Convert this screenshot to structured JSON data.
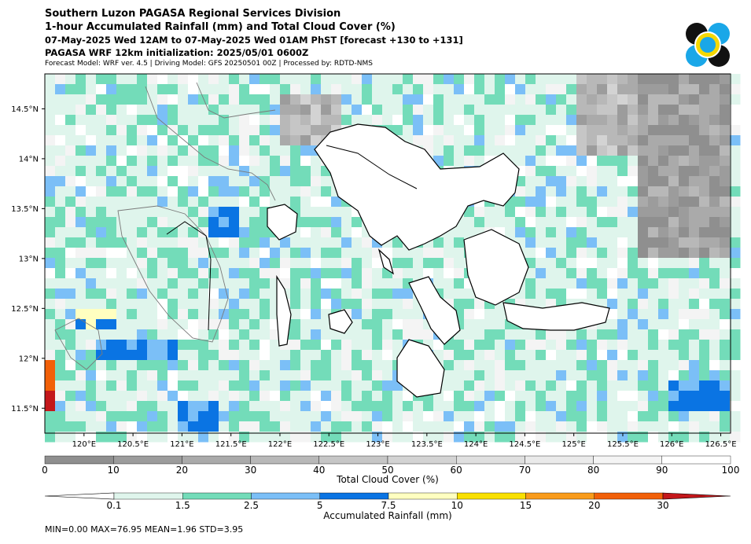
{
  "header": {
    "line1": "Southern Luzon PAGASA Regional Services Division",
    "line2": "1-hour Accumulated Rainfall (mm) and Total Cloud Cover (%)",
    "line3": "07-May-2025 Wed 12AM to 07-May-2025 Wed 01AM PhST [forecast +130 to +131]",
    "line4": "PAGASA WRF 12km initialization: 2025/05/01 0600Z",
    "line5": "Forecast Model: WRF ver. 4.5 | Driving Model: GFS 20250501 00Z | Processed by: RDTD-NMS"
  },
  "stats_text": "MIN=0.00   MAX=76.95   MEAN=1.96   STD=3.95",
  "logo": {
    "name": "PAGASA seal",
    "colors": [
      "#111111",
      "#1aa7e8",
      "#f5d800"
    ]
  },
  "chart_data": {
    "type": "heatmap",
    "map_extent": {
      "lon": [
        119.6,
        126.6
      ],
      "lat": [
        11.25,
        14.85
      ]
    },
    "xticks": [
      120,
      120.5,
      121,
      121.5,
      122,
      122.5,
      123,
      123.5,
      124,
      124.5,
      125,
      125.5,
      126,
      126.5
    ],
    "xtick_labels": [
      "120°E",
      "120.5°E",
      "121°E",
      "121.5°E",
      "122°E",
      "122.5°E",
      "123°E",
      "123.5°E",
      "124°E",
      "124.5°E",
      "125°E",
      "125.5°E",
      "126°E",
      "126.5°E"
    ],
    "yticks": [
      11.5,
      12,
      12.5,
      13,
      13.5,
      14,
      14.5
    ],
    "ytick_labels": [
      "11.5°N",
      "12°N",
      "12.5°N",
      "13°N",
      "13.5°N",
      "14°N",
      "14.5°N"
    ],
    "cloud_colorbar": {
      "label": "Total Cloud Cover (%)",
      "bounds": [
        0,
        10,
        20,
        30,
        40,
        50,
        60,
        70,
        80,
        90,
        100
      ],
      "tick_labels": [
        "0",
        "10",
        "20",
        "30",
        "40",
        "50",
        "60",
        "70",
        "80",
        "90",
        "100"
      ],
      "colors": [
        "#8f8f8f",
        "#9c9c9c",
        "#aaaaaa",
        "#b8b8b8",
        "#c6c6c6",
        "#d3d3d3",
        "#dfdfdf",
        "#eaeaea",
        "#f4f4f4",
        "#ffffff"
      ]
    },
    "rain_colorbar": {
      "label": "Accumulated Rainfall (mm)",
      "tick_labels": [
        "0.1",
        "1.5",
        "2.5",
        "5",
        "7.5",
        "10",
        "15",
        "20",
        "30"
      ],
      "colors": [
        "#dff5ec",
        "#73dcb9",
        "#7bbff7",
        "#0a74e3",
        "#ffffc0",
        "#f9e000",
        "#f99b1a",
        "#f26008",
        "#c4171b"
      ],
      "extend": "both"
    },
    "rain_zones": [
      {
        "lon": [
          120.1,
          121.0
        ],
        "lat": [
          12.0,
          12.2
        ],
        "bin": 3
      },
      {
        "lon": [
          121.3,
          121.6
        ],
        "lat": [
          13.2,
          13.5
        ],
        "bin": 3
      },
      {
        "lon": [
          121.0,
          121.4
        ],
        "lat": [
          11.3,
          11.6
        ],
        "bin": 3
      },
      {
        "lon": [
          119.95,
          120.35
        ],
        "lat": [
          12.25,
          12.45
        ],
        "bin": 4
      },
      {
        "lon": [
          119.6,
          119.75
        ],
        "lat": [
          11.5,
          12.0
        ],
        "bin": 7
      },
      {
        "lon": [
          119.6,
          119.7
        ],
        "lat": [
          11.45,
          11.65
        ],
        "bin": 8
      },
      {
        "lon": [
          126.0,
          126.6
        ],
        "lat": [
          11.5,
          11.75
        ],
        "bin": 3
      },
      {
        "lon": [
          125.4,
          125.6
        ],
        "lat": [
          12.2,
          12.4
        ],
        "bin": 2
      }
    ],
    "cloud_zones": [
      {
        "lon": [
          125.7,
          126.6
        ],
        "lat": [
          13.0,
          14.85
        ],
        "value": 15
      },
      {
        "lon": [
          125.0,
          125.7
        ],
        "lat": [
          14.0,
          14.85
        ],
        "value": 35
      },
      {
        "lon": [
          122.05,
          122.6
        ],
        "lat": [
          14.1,
          14.6
        ],
        "value": 35
      },
      {
        "lon": [
          123.0,
          123.5
        ],
        "lat": [
          13.2,
          13.5
        ],
        "value": 75
      }
    ]
  }
}
